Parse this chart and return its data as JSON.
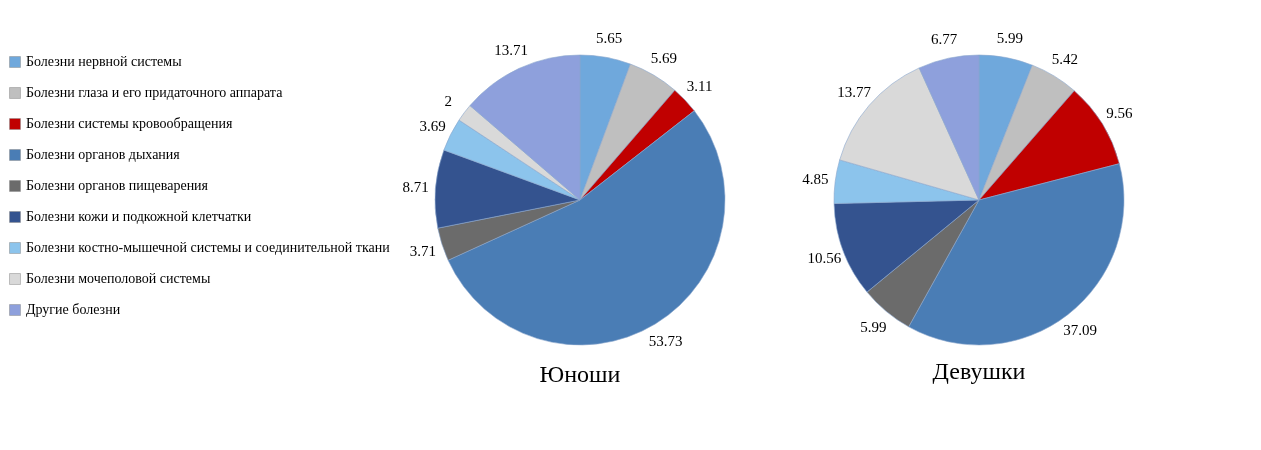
{
  "chart_data": {
    "type": "pie",
    "legend": "left",
    "data_labels": true,
    "categories": [
      "Болезни нервной системы",
      "Болезни глаза и его придаточного аппарата",
      "Болезни системы кровообращения",
      "Болезни органов дыхания",
      "Болезни органов пищеварения",
      "Болезни кожи и подкожной клетчатки",
      "Болезни костно-мышечной системы и соединительной ткани",
      "Болезни мочеполовой системы",
      "Другие болезни"
    ],
    "colors": [
      "#6fa8dc",
      "#bfbfbf",
      "#c00000",
      "#4a7db5",
      "#6b6b6b",
      "#34538f",
      "#8cc4ec",
      "#d9d9d9",
      "#8ea0dc"
    ],
    "series": [
      {
        "name": "Юноши",
        "values": [
          5.65,
          5.69,
          3.11,
          53.73,
          3.71,
          8.71,
          3.69,
          2,
          13.71
        ]
      },
      {
        "name": "Девушки",
        "values": [
          5.99,
          5.42,
          9.56,
          37.09,
          5.99,
          10.56,
          4.85,
          13.77,
          6.77
        ]
      }
    ]
  }
}
